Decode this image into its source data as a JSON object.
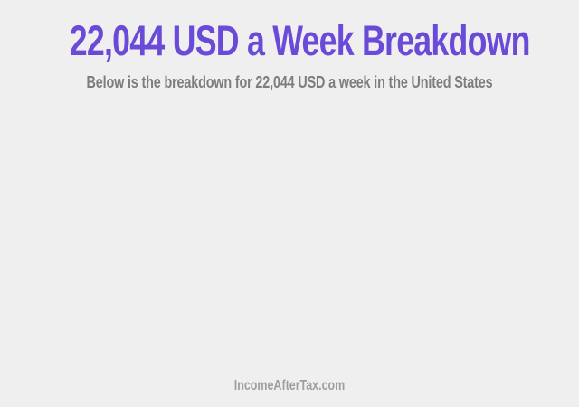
{
  "page": {
    "background_color": "#efefef"
  },
  "header": {
    "title": "22,044 USD a Week Breakdown",
    "title_color": "#6a4bd8",
    "subtitle": "Below is the breakdown for 22,044 USD a week in the United States",
    "subtitle_color": "#7d7d7d"
  },
  "footer": {
    "site_label": "IncomeAfterTax.com",
    "color": "#9e9e9e"
  }
}
